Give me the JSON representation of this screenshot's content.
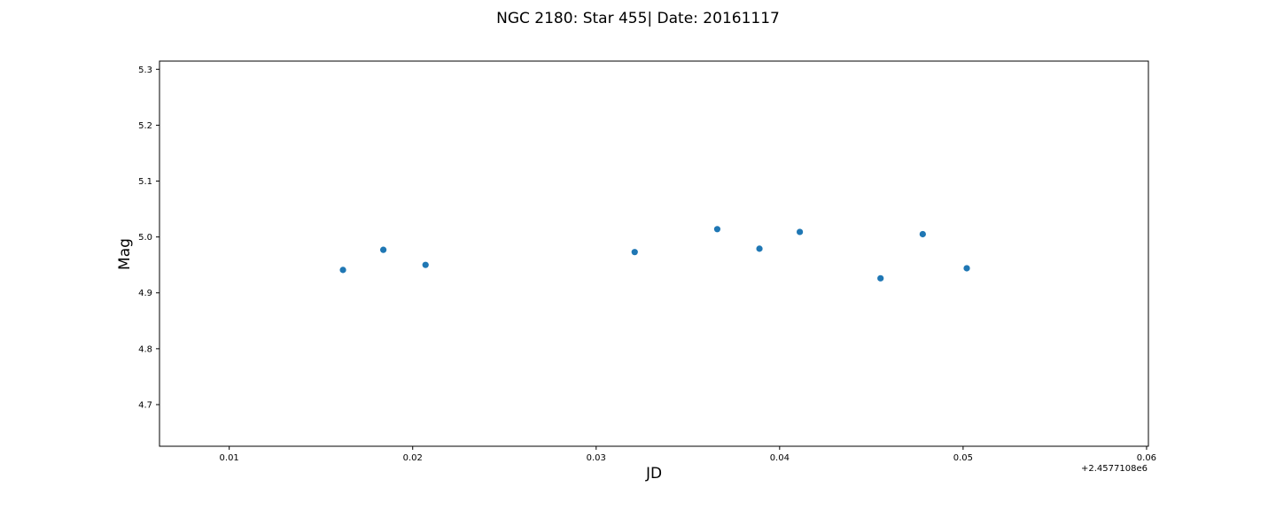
{
  "chart_data": {
    "type": "scatter",
    "title": "NGC 2180: Star 455| Date: 20161117",
    "xlabel": "JD",
    "ylabel": "Mag",
    "x_offset_label": "+2.4577108e6",
    "xlim": [
      0.0062,
      0.0601
    ],
    "ylim": [
      4.6255,
      5.3147
    ],
    "x_ticks": [
      0.01,
      0.02,
      0.03,
      0.04,
      0.05,
      0.06
    ],
    "x_tick_labels": [
      "0.01",
      "0.02",
      "0.03",
      "0.04",
      "0.05",
      "0.06"
    ],
    "y_ticks": [
      4.7,
      4.8,
      4.9,
      5.0,
      5.1,
      5.2,
      5.3
    ],
    "y_tick_labels": [
      "4.7",
      "4.8",
      "4.9",
      "5.0",
      "5.1",
      "5.2",
      "5.3"
    ],
    "grid": false,
    "marker_color": "#1f77b4",
    "points": [
      {
        "x": 0.0162,
        "y": 4.941
      },
      {
        "x": 0.0184,
        "y": 4.977
      },
      {
        "x": 0.0207,
        "y": 4.95
      },
      {
        "x": 0.0321,
        "y": 4.973
      },
      {
        "x": 0.0366,
        "y": 5.014
      },
      {
        "x": 0.0389,
        "y": 4.979
      },
      {
        "x": 0.0411,
        "y": 5.009
      },
      {
        "x": 0.0455,
        "y": 4.926
      },
      {
        "x": 0.0478,
        "y": 5.005
      },
      {
        "x": 0.0502,
        "y": 4.944
      }
    ]
  }
}
